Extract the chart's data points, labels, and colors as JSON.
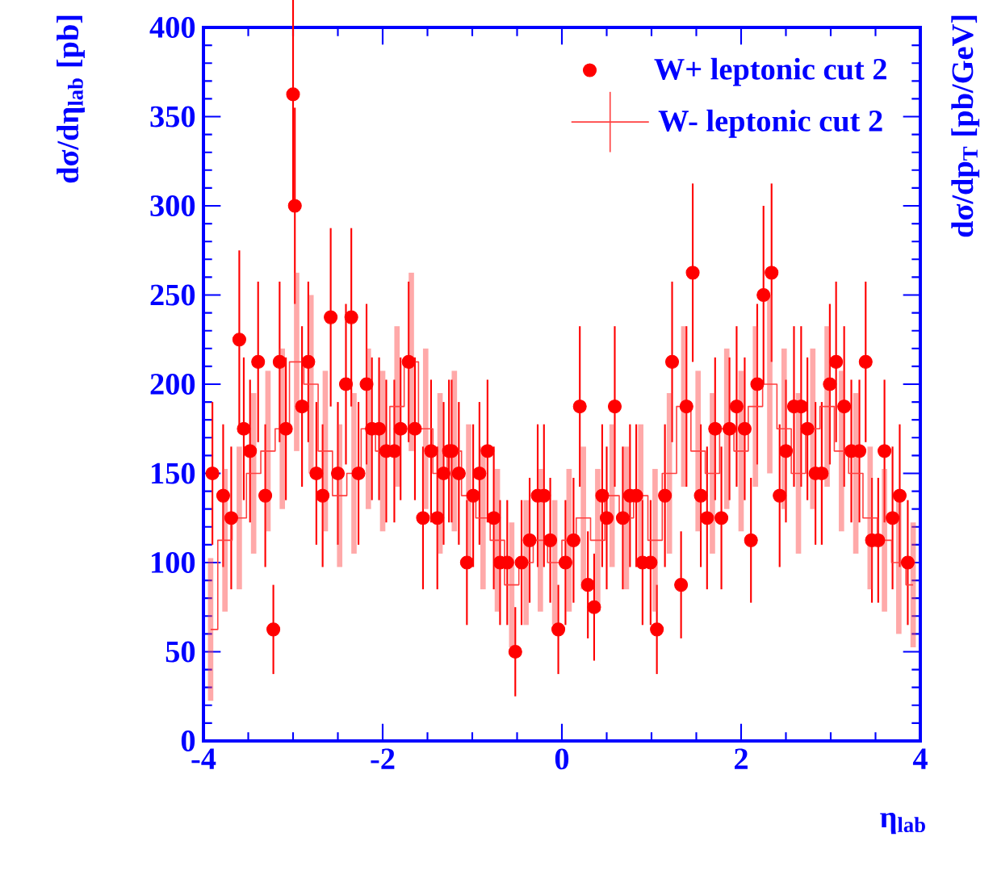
{
  "chart_data": {
    "type": "scatter",
    "xlabel": "η$_{lab}$",
    "ylabel": "dσ/dη$_{lab}$ [pb]",
    "y2label": "dσ/dp$_{T}$ [pb/GeV]",
    "xlim": [
      -4,
      4
    ],
    "ylim": [
      0,
      400
    ],
    "xticks": [
      -4,
      -2,
      0,
      2,
      4
    ],
    "yticks": [
      0,
      50,
      100,
      150,
      200,
      250,
      300,
      350,
      400
    ],
    "legend": "top right",
    "series": [
      {
        "name": "W+ leptonic cut 2",
        "marker": "circle",
        "color": "#ff0000",
        "x": [
          -3.9,
          -3.78,
          -3.69,
          -3.6,
          -3.55,
          -3.48,
          -3.39,
          -3.31,
          -3.22,
          -3.15,
          -3.08,
          -3.0,
          -2.98,
          -2.9,
          -2.83,
          -2.74,
          -2.67,
          -2.58,
          -2.5,
          -2.41,
          -2.35,
          -2.27,
          -2.18,
          -2.12,
          -2.04,
          -1.96,
          -1.87,
          -1.8,
          -1.71,
          -1.64,
          -1.55,
          -1.46,
          -1.39,
          -1.32,
          -1.26,
          -1.23,
          -1.15,
          -1.06,
          -0.99,
          -0.92,
          -0.83,
          -0.76,
          -0.69,
          -0.61,
          -0.52,
          -0.45,
          -0.36,
          -0.27,
          -0.2,
          -0.13,
          -0.04,
          0.04,
          0.13,
          0.2,
          0.29,
          0.36,
          0.45,
          0.5,
          0.59,
          0.68,
          0.76,
          0.83,
          0.9,
          0.99,
          1.06,
          1.15,
          1.23,
          1.33,
          1.39,
          1.46,
          1.55,
          1.62,
          1.71,
          1.78,
          1.87,
          1.95,
          2.04,
          2.11,
          2.18,
          2.25,
          2.34,
          2.43,
          2.5,
          2.59,
          2.67,
          2.74,
          2.83,
          2.9,
          2.99,
          3.06,
          3.15,
          3.23,
          3.32,
          3.39,
          3.46,
          3.53,
          3.6,
          3.69,
          3.77,
          3.86
        ],
        "values": [
          150,
          137.5,
          125,
          225,
          175,
          162.5,
          212.5,
          137.5,
          62.5,
          212.5,
          175,
          362.5,
          300,
          187.5,
          212.5,
          150,
          137.5,
          237.5,
          150,
          200,
          237.5,
          150,
          200,
          175,
          175,
          162.5,
          162.5,
          175,
          212.5,
          175,
          125,
          162.5,
          125,
          150,
          162.5,
          162.5,
          150,
          100,
          137.5,
          150,
          162.5,
          125,
          100,
          100,
          50,
          100,
          112.5,
          137.5,
          137.5,
          112.5,
          62.5,
          100,
          112.5,
          187.5,
          87.5,
          75,
          137.5,
          125,
          187.5,
          125,
          137.5,
          137.5,
          100,
          100,
          62.5,
          137.5,
          212.5,
          87.5,
          187.5,
          262.5,
          137.5,
          125,
          175,
          125,
          175,
          187.5,
          175,
          112.5,
          200,
          250,
          262.5,
          137.5,
          162.5,
          187.5,
          187.5,
          175,
          150,
          150,
          200,
          212.5,
          187.5,
          162.5,
          162.5,
          212.5,
          112.5,
          112.5,
          162.5,
          125,
          137.5,
          100
        ],
        "errors": [
          40,
          40,
          40,
          50,
          40,
          40,
          45,
          40,
          25,
          45,
          40,
          60,
          55,
          45,
          45,
          40,
          40,
          50,
          40,
          45,
          50,
          40,
          45,
          40,
          40,
          40,
          40,
          40,
          45,
          40,
          40,
          40,
          40,
          40,
          40,
          40,
          40,
          35,
          40,
          40,
          40,
          40,
          35,
          35,
          25,
          35,
          35,
          40,
          40,
          35,
          25,
          35,
          35,
          45,
          30,
          30,
          40,
          40,
          45,
          40,
          40,
          40,
          35,
          35,
          25,
          40,
          45,
          30,
          45,
          50,
          40,
          40,
          40,
          40,
          40,
          45,
          40,
          35,
          45,
          50,
          50,
          40,
          40,
          45,
          45,
          40,
          40,
          40,
          45,
          45,
          45,
          40,
          40,
          45,
          35,
          35,
          40,
          40,
          40,
          35
        ]
      },
      {
        "name": "W- leptonic cut 2",
        "type": "step",
        "marker": "none",
        "color": "#ff4040",
        "x": [
          -3.92,
          -3.76,
          -3.6,
          -3.44,
          -3.28,
          -3.12,
          -2.96,
          -2.8,
          -2.64,
          -2.48,
          -2.32,
          -2.16,
          -2.0,
          -1.84,
          -1.68,
          -1.52,
          -1.36,
          -1.2,
          -1.04,
          -0.88,
          -0.72,
          -0.56,
          -0.4,
          -0.24,
          -0.08,
          0.08,
          0.24,
          0.4,
          0.56,
          0.72,
          0.88,
          1.04,
          1.2,
          1.36,
          1.52,
          1.68,
          1.84,
          2.0,
          2.16,
          2.32,
          2.48,
          2.64,
          2.8,
          2.96,
          3.12,
          3.28,
          3.44,
          3.6,
          3.76,
          3.92
        ],
        "values": [
          62.5,
          112.5,
          125,
          150,
          162.5,
          175,
          212.5,
          200,
          162.5,
          137.5,
          150,
          175,
          162.5,
          187.5,
          212.5,
          175,
          150,
          162.5,
          137.5,
          125,
          112.5,
          87.5,
          100,
          112.5,
          100,
          112.5,
          125,
          112.5,
          137.5,
          125,
          137.5,
          112.5,
          150,
          187.5,
          162.5,
          150,
          175,
          162.5,
          187.5,
          200,
          175,
          150,
          175,
          187.5,
          162.5,
          150,
          125,
          112.5,
          100,
          87.5
        ],
        "errors": [
          40,
          40,
          40,
          45,
          45,
          45,
          50,
          50,
          45,
          40,
          45,
          45,
          45,
          45,
          50,
          45,
          45,
          45,
          40,
          40,
          40,
          35,
          35,
          40,
          35,
          40,
          40,
          40,
          40,
          40,
          40,
          40,
          45,
          45,
          45,
          45,
          45,
          45,
          45,
          50,
          45,
          45,
          45,
          45,
          45,
          45,
          40,
          40,
          40,
          35
        ]
      }
    ]
  }
}
